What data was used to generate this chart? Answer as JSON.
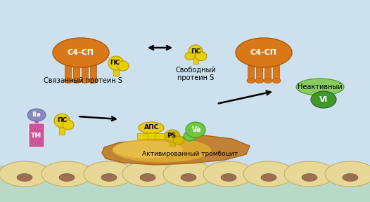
{
  "bg_color": "#cce0ee",
  "cell_base_color": "#c8ddc8",
  "cell_color": "#e8d898",
  "cell_outline": "#c8b060",
  "cell_nucleus_color": "#9a7050",
  "orange_color": "#d87818",
  "orange_dark": "#b05808",
  "yellow_color": "#e8d000",
  "yellow_mid": "#d4b800",
  "yellow_dark": "#b89000",
  "purple_color": "#8888bb",
  "pink_color": "#cc5599",
  "green_bright": "#70c840",
  "green_dark": "#409828",
  "green_inactive": "#88cc60",
  "text_color": "#000000",
  "labels": {
    "c4sp": "С4-СП",
    "ps": "ПС",
    "ps_latin": "PS",
    "bound_protein": "Связанный протеин S",
    "free_protein": "Свободный\nпротеин S",
    "aps": "АПС",
    "va": "Va",
    "activated": "Активированный тромбоцит",
    "iia": "IIa",
    "tm": "ТМ",
    "inactive": "Неактивный",
    "vi": "Vi"
  }
}
